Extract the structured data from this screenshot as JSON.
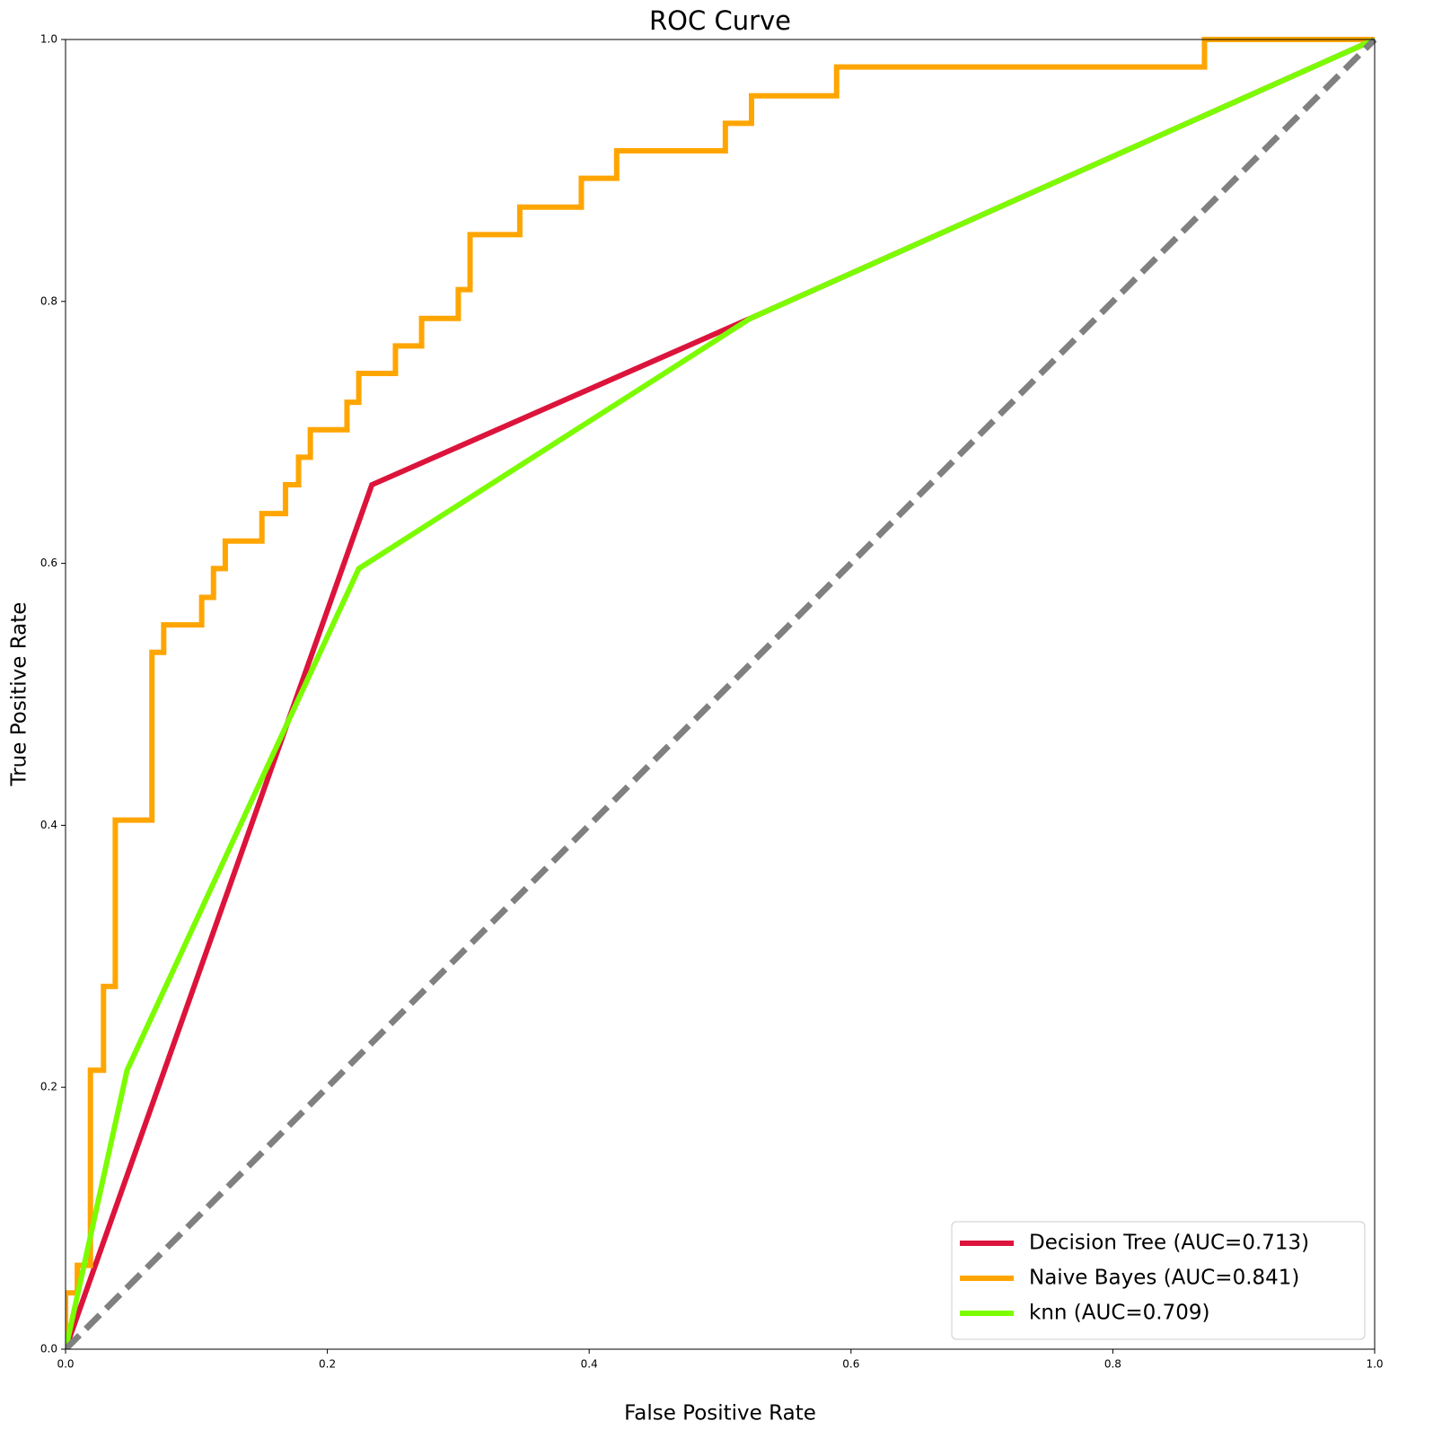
{
  "chart_data": {
    "type": "line",
    "title": "ROC Curve",
    "xlabel": "False Positive Rate",
    "ylabel": "True Positive Rate",
    "xlim": [
      0,
      1
    ],
    "ylim": [
      0,
      1
    ],
    "xticks": [
      {
        "value": 0,
        "label": "0.0"
      },
      {
        "value": 0.2,
        "label": "0.2"
      },
      {
        "value": 0.4,
        "label": "0.4"
      },
      {
        "value": 0.6,
        "label": "0.6"
      },
      {
        "value": 0.8,
        "label": "0.8"
      },
      {
        "value": 1,
        "label": "1.0"
      }
    ],
    "yticks": [
      {
        "value": 0,
        "label": "0.0"
      },
      {
        "value": 0.2,
        "label": "0.2"
      },
      {
        "value": 0.4,
        "label": "0.4"
      },
      {
        "value": 0.6,
        "label": "0.6"
      },
      {
        "value": 0.8,
        "label": "0.8"
      },
      {
        "value": 1,
        "label": "1.0"
      }
    ],
    "grid": false,
    "legend": "lower right",
    "series": [
      {
        "name": "Decision Tree (AUC=0.713)",
        "color": "#dc143c",
        "x": [
          0,
          0.234,
          0.523,
          1
        ],
        "values": [
          0,
          0.66,
          0.787,
          1
        ]
      },
      {
        "name": "Naive Bayes (AUC=0.841)",
        "color": "#ffa500",
        "x": [
          0,
          0,
          0.009,
          0.009,
          0.019,
          0.019,
          0.029,
          0.029,
          0.038,
          0.038,
          0.066,
          0.066,
          0.075,
          0.075,
          0.104,
          0.104,
          0.113,
          0.113,
          0.122,
          0.122,
          0.15,
          0.15,
          0.168,
          0.168,
          0.178,
          0.178,
          0.187,
          0.187,
          0.215,
          0.215,
          0.224,
          0.224,
          0.252,
          0.252,
          0.272,
          0.272,
          0.3,
          0.3,
          0.309,
          0.309,
          0.347,
          0.347,
          0.394,
          0.394,
          0.421,
          0.421,
          0.504,
          0.504,
          0.524,
          0.524,
          0.589,
          0.589,
          0.87,
          0.87,
          1
        ],
        "values": [
          0,
          0.043,
          0.043,
          0.064,
          0.064,
          0.213,
          0.213,
          0.277,
          0.277,
          0.404,
          0.404,
          0.532,
          0.532,
          0.553,
          0.553,
          0.574,
          0.574,
          0.596,
          0.596,
          0.617,
          0.617,
          0.638,
          0.638,
          0.66,
          0.66,
          0.681,
          0.681,
          0.702,
          0.702,
          0.723,
          0.723,
          0.745,
          0.745,
          0.766,
          0.766,
          0.787,
          0.787,
          0.809,
          0.809,
          0.851,
          0.851,
          0.872,
          0.872,
          0.894,
          0.894,
          0.915,
          0.915,
          0.936,
          0.936,
          0.957,
          0.957,
          0.979,
          0.979,
          1.0,
          1.0
        ]
      },
      {
        "name": "knn (AUC=0.709)",
        "color": "#7cfc00",
        "x": [
          0,
          0.047,
          0.224,
          0.523,
          1
        ],
        "values": [
          0,
          0.213,
          0.596,
          0.787,
          1
        ]
      }
    ],
    "reference_line": {
      "color": "#808080",
      "dashed": true,
      "x": [
        0,
        1
      ],
      "values": [
        0,
        1
      ]
    }
  }
}
